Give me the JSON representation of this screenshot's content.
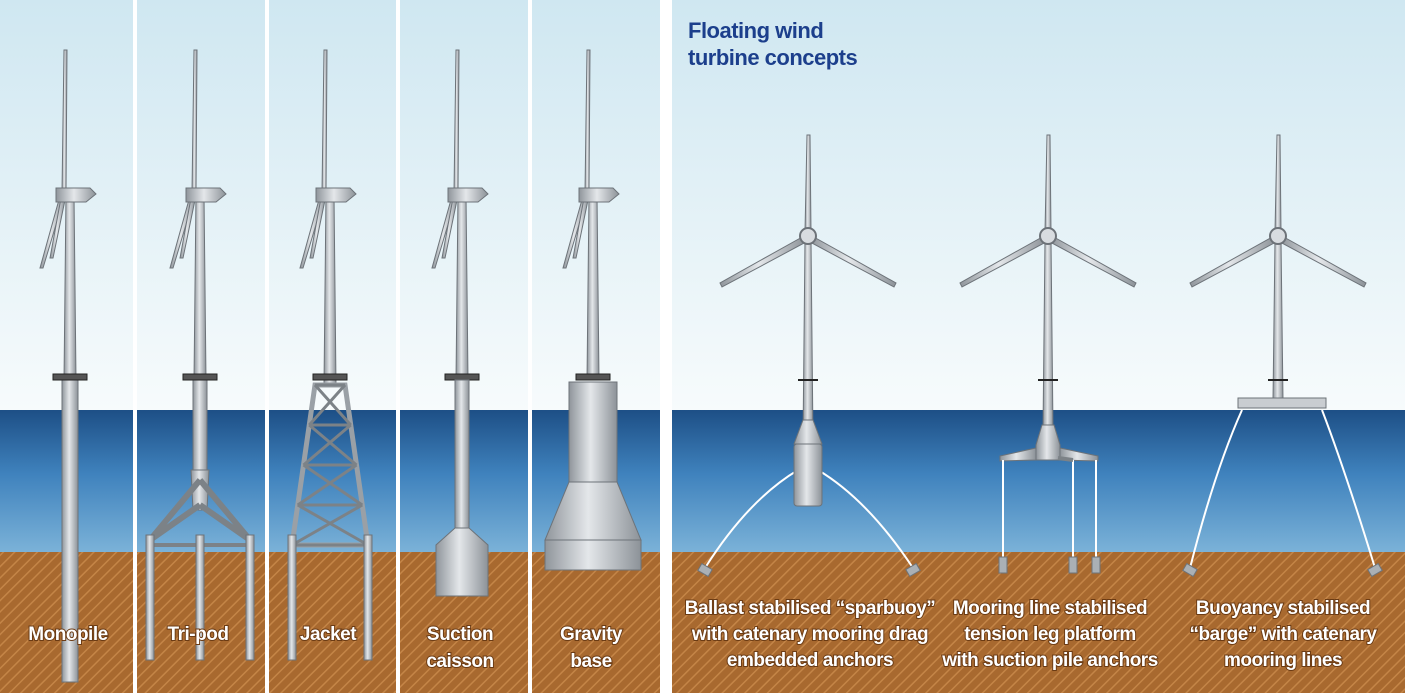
{
  "title": [
    "Floating wind",
    "turbine concepts"
  ],
  "fixed": [
    {
      "lines": [
        "Monopile"
      ]
    },
    {
      "lines": [
        "Tri-pod"
      ]
    },
    {
      "lines": [
        "Jacket"
      ]
    },
    {
      "lines": [
        "Suction",
        "caisson"
      ]
    },
    {
      "lines": [
        "Gravity",
        "base"
      ]
    }
  ],
  "floating": [
    {
      "lines": [
        "Ballast stabilised “sparbuoy”",
        "with catenary mooring drag",
        "embedded anchors"
      ]
    },
    {
      "lines": [
        "Mooring line stabilised",
        "tension leg platform",
        "with suction pile anchors"
      ]
    },
    {
      "lines": [
        "Buoyancy stabilised",
        "“barge” with catenary",
        "mooring lines"
      ]
    }
  ]
}
